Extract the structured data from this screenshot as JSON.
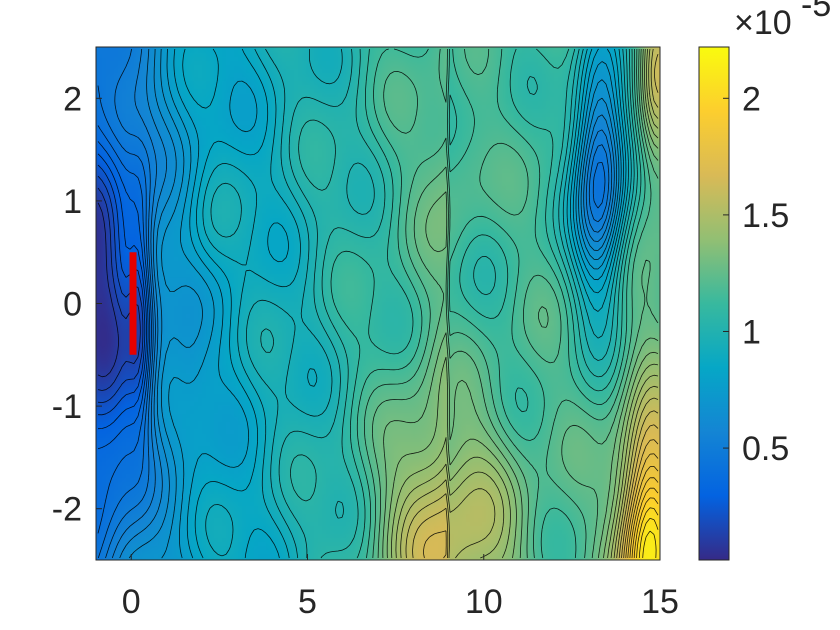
{
  "chart_data": {
    "type": "heatmap",
    "title": "",
    "xlabel": "",
    "ylabel": "",
    "xlim": [
      -1,
      15
    ],
    "ylim": [
      -2.5,
      2.5
    ],
    "x_ticks": [
      {
        "value": 0,
        "label": "0"
      },
      {
        "value": 5,
        "label": "5"
      },
      {
        "value": 10,
        "label": "10"
      },
      {
        "value": 15,
        "label": "15"
      }
    ],
    "y_ticks": [
      {
        "value": 2,
        "label": "2"
      },
      {
        "value": 1,
        "label": "1"
      },
      {
        "value": 0,
        "label": "0"
      },
      {
        "value": -1,
        "label": "-1"
      },
      {
        "value": -2,
        "label": "-2"
      }
    ],
    "colorbar": {
      "colormap": "parula",
      "range": [
        2e-07,
        2.22e-05
      ],
      "exponent_label": "×10",
      "exponent": "-5",
      "ticks": [
        {
          "value": 0.5,
          "label": "0.5"
        },
        {
          "value": 1,
          "label": "1"
        },
        {
          "value": 1.5,
          "label": "1.5"
        },
        {
          "value": 2,
          "label": "2"
        }
      ]
    },
    "contour_lines": true,
    "source_segment": {
      "x": 0.05,
      "y_range": [
        -0.5,
        0.5
      ],
      "color": "#e60000"
    },
    "field_features": [
      {
        "kind": "minimum",
        "x": -0.7,
        "y": 0,
        "level": 0.08
      },
      {
        "kind": "band",
        "x": 5.0,
        "level": 0.85
      },
      {
        "kind": "maximum",
        "x": 9.0,
        "y": -2.2,
        "level": 1.55
      },
      {
        "kind": "minimum",
        "x": 13.3,
        "y": 1.3,
        "level": 0.35
      },
      {
        "kind": "maximum",
        "x": 14.6,
        "y": -2.3,
        "level": 2.1
      }
    ]
  }
}
